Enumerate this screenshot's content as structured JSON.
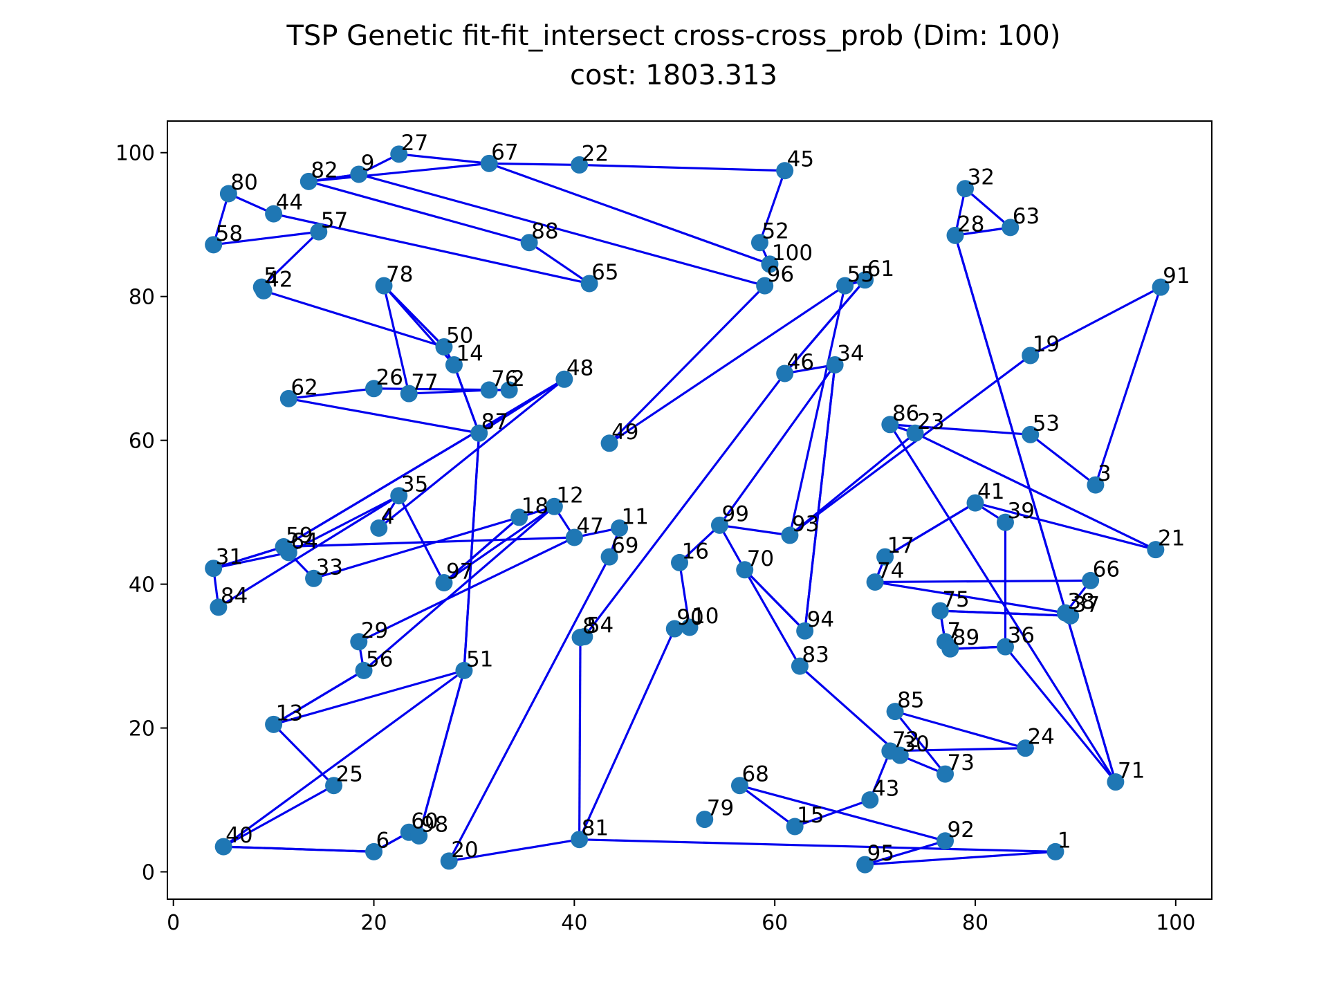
{
  "chart_data": {
    "type": "scatter",
    "title": "TSP Genetic fit-fit_intersect cross-cross_prob (Dim: 100)",
    "subtitle": "cost: 1803.313",
    "xlabel": "",
    "ylabel": "",
    "xlim": [
      -0.6,
      103.6
    ],
    "ylim": [
      -3.8,
      104.4
    ],
    "xticks": [
      0,
      20,
      40,
      60,
      80,
      100
    ],
    "yticks": [
      0,
      20,
      40,
      60,
      80,
      100
    ],
    "grid": false,
    "legend": "none",
    "colors": {
      "point": "#1f77b4",
      "route": "#0000ee",
      "axes": "#000000",
      "background": "#ffffff"
    },
    "points": [
      {
        "id": "1",
        "x": 88.0,
        "y": 2.8
      },
      {
        "id": "95",
        "x": 69.0,
        "y": 1.0
      },
      {
        "id": "92",
        "x": 77.0,
        "y": 4.3
      },
      {
        "id": "68",
        "x": 56.5,
        "y": 12.0
      },
      {
        "id": "43",
        "x": 69.5,
        "y": 10.0
      },
      {
        "id": "15",
        "x": 62.0,
        "y": 6.3
      },
      {
        "id": "79",
        "x": 53.0,
        "y": 7.3
      },
      {
        "id": "72",
        "x": 71.5,
        "y": 16.8
      },
      {
        "id": "24",
        "x": 85.0,
        "y": 17.2
      },
      {
        "id": "85",
        "x": 72.0,
        "y": 22.3
      },
      {
        "id": "73",
        "x": 77.0,
        "y": 13.6
      },
      {
        "id": "30",
        "x": 72.5,
        "y": 16.2
      },
      {
        "id": "83",
        "x": 62.5,
        "y": 28.6
      },
      {
        "id": "70",
        "x": 57.0,
        "y": 42.0
      },
      {
        "id": "94",
        "x": 63.0,
        "y": 33.5
      },
      {
        "id": "34",
        "x": 66.0,
        "y": 70.5
      },
      {
        "id": "99",
        "x": 54.5,
        "y": 48.2
      },
      {
        "id": "16",
        "x": 50.5,
        "y": 43.0
      },
      {
        "id": "10",
        "x": 51.5,
        "y": 34.0
      },
      {
        "id": "90",
        "x": 50.0,
        "y": 33.8
      },
      {
        "id": "54",
        "x": 41.0,
        "y": 32.7
      },
      {
        "id": "8",
        "x": 40.6,
        "y": 32.6
      },
      {
        "id": "81",
        "x": 40.5,
        "y": 4.5
      },
      {
        "id": "20",
        "x": 27.5,
        "y": 1.5
      },
      {
        "id": "69",
        "x": 43.5,
        "y": 43.8
      },
      {
        "id": "11",
        "x": 44.5,
        "y": 47.8
      },
      {
        "id": "47",
        "x": 40.0,
        "y": 46.5
      },
      {
        "id": "12",
        "x": 38.0,
        "y": 50.8
      },
      {
        "id": "18",
        "x": 34.5,
        "y": 49.3
      },
      {
        "id": "97",
        "x": 27.0,
        "y": 40.2
      },
      {
        "id": "33",
        "x": 14.0,
        "y": 40.8
      },
      {
        "id": "84",
        "x": 4.5,
        "y": 36.8
      },
      {
        "id": "35",
        "x": 22.5,
        "y": 52.3
      },
      {
        "id": "31",
        "x": 4.0,
        "y": 42.2
      },
      {
        "id": "59",
        "x": 11.0,
        "y": 45.2
      },
      {
        "id": "64",
        "x": 11.5,
        "y": 44.4
      },
      {
        "id": "48",
        "x": 39.0,
        "y": 68.5
      },
      {
        "id": "4",
        "x": 20.5,
        "y": 47.8
      },
      {
        "id": "29",
        "x": 18.5,
        "y": 32.0
      },
      {
        "id": "56",
        "x": 19.0,
        "y": 28.0
      },
      {
        "id": "13",
        "x": 10.0,
        "y": 20.5
      },
      {
        "id": "25",
        "x": 16.0,
        "y": 12.0
      },
      {
        "id": "40",
        "x": 5.0,
        "y": 3.5
      },
      {
        "id": "6",
        "x": 20.0,
        "y": 2.8
      },
      {
        "id": "60",
        "x": 23.5,
        "y": 5.5
      },
      {
        "id": "98",
        "x": 24.5,
        "y": 5.0
      },
      {
        "id": "51",
        "x": 29.0,
        "y": 28.0
      },
      {
        "id": "87",
        "x": 30.5,
        "y": 61.0
      },
      {
        "id": "14",
        "x": 28.0,
        "y": 70.5
      },
      {
        "id": "62",
        "x": 11.5,
        "y": 65.8
      },
      {
        "id": "26",
        "x": 20.0,
        "y": 67.2
      },
      {
        "id": "77",
        "x": 23.5,
        "y": 66.5
      },
      {
        "id": "76",
        "x": 31.5,
        "y": 67.0
      },
      {
        "id": "2",
        "x": 33.5,
        "y": 67.0
      },
      {
        "id": "78",
        "x": 21.0,
        "y": 81.5
      },
      {
        "id": "50",
        "x": 27.0,
        "y": 73.0
      },
      {
        "id": "5",
        "x": 8.8,
        "y": 81.3
      },
      {
        "id": "42",
        "x": 9.0,
        "y": 80.8
      },
      {
        "id": "57",
        "x": 14.5,
        "y": 89.0
      },
      {
        "id": "58",
        "x": 4.0,
        "y": 87.2
      },
      {
        "id": "80",
        "x": 5.5,
        "y": 94.3
      },
      {
        "id": "44",
        "x": 10.0,
        "y": 91.5
      },
      {
        "id": "65",
        "x": 41.5,
        "y": 81.8
      },
      {
        "id": "88",
        "x": 35.5,
        "y": 87.5
      },
      {
        "id": "82",
        "x": 13.5,
        "y": 96.0
      },
      {
        "id": "9",
        "x": 18.5,
        "y": 97.0
      },
      {
        "id": "27",
        "x": 22.5,
        "y": 99.8
      },
      {
        "id": "67",
        "x": 31.5,
        "y": 98.5
      },
      {
        "id": "22",
        "x": 40.5,
        "y": 98.3
      },
      {
        "id": "45",
        "x": 61.0,
        "y": 97.5
      },
      {
        "id": "52",
        "x": 58.5,
        "y": 87.5
      },
      {
        "id": "100",
        "x": 59.5,
        "y": 84.5
      },
      {
        "id": "96",
        "x": 59.0,
        "y": 81.5
      },
      {
        "id": "49",
        "x": 43.5,
        "y": 59.6
      },
      {
        "id": "55",
        "x": 67.0,
        "y": 81.5
      },
      {
        "id": "61",
        "x": 69.0,
        "y": 82.3
      },
      {
        "id": "46",
        "x": 61.0,
        "y": 69.3
      },
      {
        "id": "93",
        "x": 61.5,
        "y": 46.8
      },
      {
        "id": "19",
        "x": 85.5,
        "y": 71.8
      },
      {
        "id": "91",
        "x": 98.5,
        "y": 81.3
      },
      {
        "id": "3",
        "x": 92.0,
        "y": 53.8
      },
      {
        "id": "53",
        "x": 85.5,
        "y": 60.8
      },
      {
        "id": "86",
        "x": 71.5,
        "y": 62.2
      },
      {
        "id": "23",
        "x": 74.0,
        "y": 61.0
      },
      {
        "id": "21",
        "x": 98.0,
        "y": 44.8
      },
      {
        "id": "41",
        "x": 80.0,
        "y": 51.3
      },
      {
        "id": "17",
        "x": 71.0,
        "y": 43.8
      },
      {
        "id": "74",
        "x": 70.0,
        "y": 40.3
      },
      {
        "id": "66",
        "x": 91.5,
        "y": 40.5
      },
      {
        "id": "38",
        "x": 89.0,
        "y": 36.0
      },
      {
        "id": "37",
        "x": 89.5,
        "y": 35.6
      },
      {
        "id": "75",
        "x": 76.5,
        "y": 36.3
      },
      {
        "id": "7",
        "x": 77.0,
        "y": 32.0
      },
      {
        "id": "89",
        "x": 77.5,
        "y": 31.0
      },
      {
        "id": "36",
        "x": 83.0,
        "y": 31.3
      },
      {
        "id": "39",
        "x": 83.0,
        "y": 48.6
      },
      {
        "id": "71",
        "x": 94.0,
        "y": 12.5
      },
      {
        "id": "28",
        "x": 78.0,
        "y": 88.5
      },
      {
        "id": "32",
        "x": 79.0,
        "y": 95.0
      },
      {
        "id": "63",
        "x": 83.5,
        "y": 89.6
      }
    ],
    "route": [
      "1",
      "95",
      "92",
      "68",
      "15",
      "43",
      "72",
      "24",
      "85",
      "73",
      "30",
      "83",
      "70",
      "94",
      "34",
      "99",
      "16",
      "10",
      "90",
      "81",
      "20",
      "69",
      "11",
      "47",
      "29",
      "56",
      "13",
      "51",
      "40",
      "6",
      "60",
      "98",
      "51",
      "87",
      "14",
      "50",
      "78",
      "77",
      "76",
      "2",
      "26",
      "62",
      "87",
      "48",
      "4",
      "35",
      "84",
      "31",
      "64",
      "33",
      "18",
      "97",
      "12",
      "47",
      "59",
      "48",
      "59",
      "31",
      "59",
      "64",
      "35",
      "97",
      "18",
      "12",
      "56",
      "13",
      "25",
      "40",
      "6",
      "60",
      "98",
      "51",
      "87",
      "14",
      "78",
      "50",
      "42",
      "5",
      "57",
      "58",
      "80",
      "44",
      "65",
      "88",
      "82",
      "9",
      "27",
      "67",
      "100",
      "52",
      "45",
      "22",
      "67",
      "82",
      "9",
      "96",
      "49",
      "55",
      "61",
      "46",
      "34",
      "94",
      "70",
      "99",
      "93",
      "19",
      "91",
      "3",
      "53",
      "86",
      "23",
      "21",
      "41",
      "17",
      "74",
      "66",
      "38",
      "37",
      "75",
      "7",
      "89",
      "36",
      "39",
      "41",
      "17",
      "74",
      "38",
      "37",
      "75",
      "7",
      "89",
      "36",
      "71",
      "28",
      "32",
      "63",
      "28",
      "71",
      "86",
      "23",
      "93",
      "55",
      "61",
      "46",
      "54",
      "8",
      "81",
      "1"
    ]
  }
}
